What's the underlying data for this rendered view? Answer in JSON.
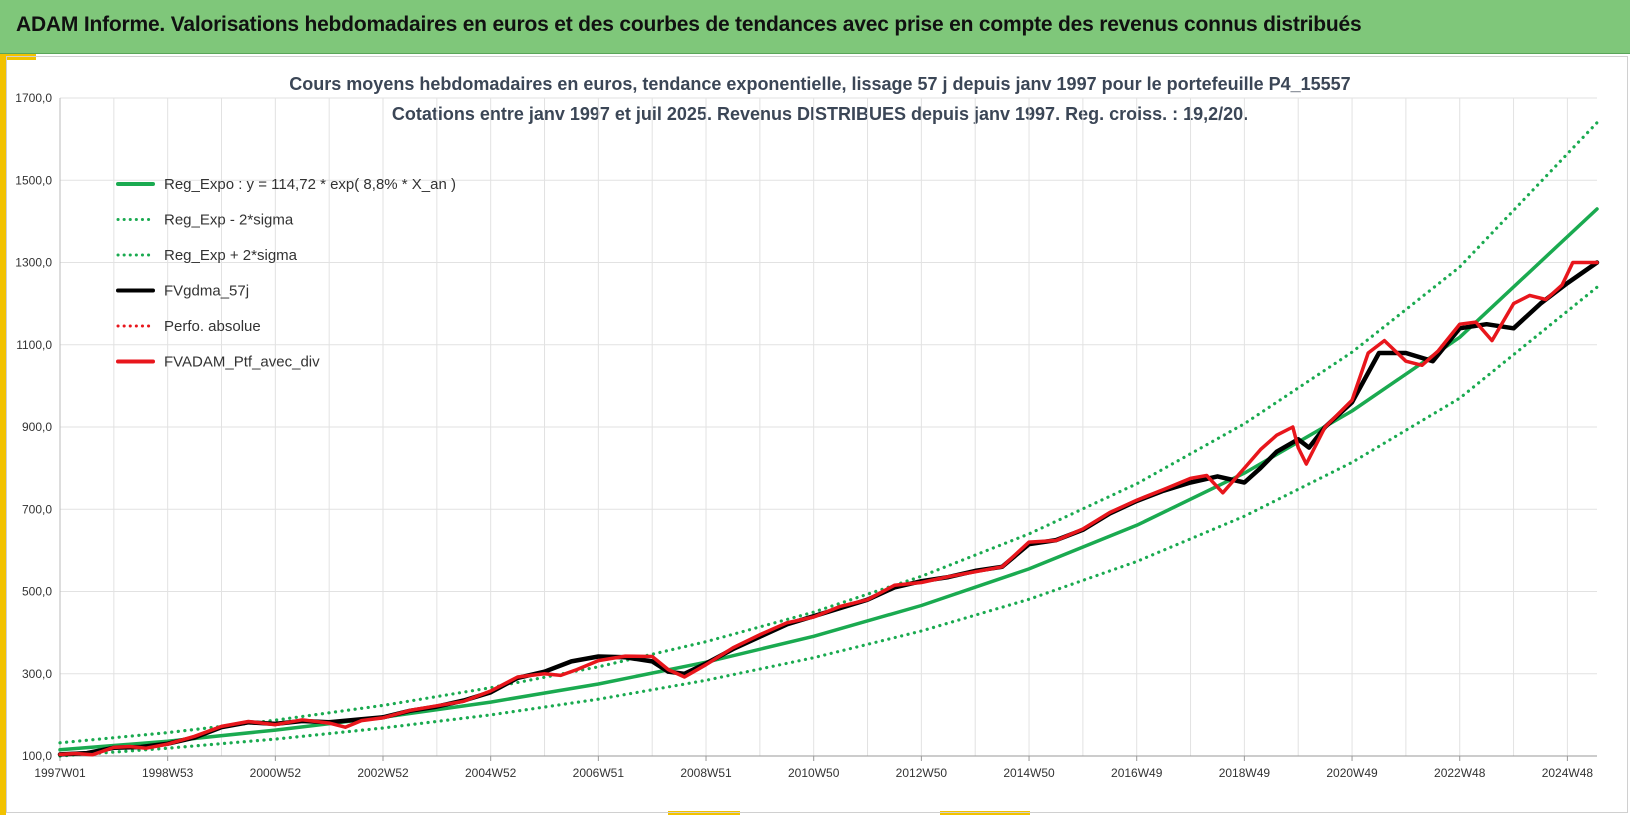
{
  "header": {
    "title": "ADAM Informe. Valorisations hebdomadaires en euros et des courbes de tendances avec prise en compte des revenus connus distribués"
  },
  "chart_data": {
    "type": "line",
    "title_line1": "Cours moyens hebdomadaires  en euros, tendance exponentielle, lissage 57 j depuis janv 1997 pour le portefeuille P4_15557",
    "title_line2": "Cotations entre janv 1997 et juil 2025. Revenus DISTRIBUES depuis janv 1997. Reg. croiss. : 19,2/20.",
    "ylim": [
      100,
      1700
    ],
    "y_ticks": [
      "100,0",
      "300,0",
      "500,0",
      "700,0",
      "900,0",
      "1100,0",
      "1300,0",
      "1500,0",
      "1700,0"
    ],
    "x_tick_labels": [
      {
        "x": 1997.0,
        "label": "1997W01"
      },
      {
        "x": 1999.0,
        "label": "1998W53"
      },
      {
        "x": 2001.0,
        "label": "2000W52"
      },
      {
        "x": 2003.0,
        "label": "2002W52"
      },
      {
        "x": 2005.0,
        "label": "2004W52"
      },
      {
        "x": 2007.0,
        "label": "2006W51"
      },
      {
        "x": 2009.0,
        "label": "2008W51"
      },
      {
        "x": 2011.0,
        "label": "2010W50"
      },
      {
        "x": 2013.0,
        "label": "2012W50"
      },
      {
        "x": 2015.0,
        "label": "2014W50"
      },
      {
        "x": 2017.0,
        "label": "2016W49"
      },
      {
        "x": 2019.0,
        "label": "2018W49"
      },
      {
        "x": 2021.0,
        "label": "2020W49"
      },
      {
        "x": 2023.0,
        "label": "2022W48"
      },
      {
        "x": 2025.0,
        "label": "2024W48"
      }
    ],
    "xlim": [
      1997.0,
      2025.55
    ],
    "grid": true,
    "legend_position": "top-left",
    "colors": {
      "green": "#1aaa50",
      "black": "#000000",
      "red": "#e8161c"
    },
    "series": [
      {
        "name": "Reg_Expo : y = 114,72 * exp( 8,8% *  X_an )",
        "style": "solid",
        "color": "#1aaa50",
        "x": [
          1997,
          1999,
          2001,
          2003,
          2005,
          2007,
          2009,
          2011,
          2013,
          2015,
          2017,
          2019,
          2021,
          2023,
          2025.55
        ],
        "y": [
          115,
          136,
          163,
          194,
          231,
          275,
          328,
          391,
          466,
          555,
          661,
          788,
          939,
          1118,
          1430
        ]
      },
      {
        "name": "Reg_Exp - 2*sigma",
        "style": "dotted",
        "color": "#1aaa50",
        "x": [
          1997,
          1999,
          2001,
          2003,
          2005,
          2007,
          2009,
          2011,
          2013,
          2015,
          2017,
          2019,
          2021,
          2023,
          2025.55
        ],
        "y": [
          100,
          119,
          141,
          168,
          200,
          238,
          284,
          339,
          404,
          481,
          573,
          683,
          814,
          970,
          1240
        ]
      },
      {
        "name": "Reg_Exp + 2*sigma",
        "style": "dotted",
        "color": "#1aaa50",
        "x": [
          1997,
          1999,
          2001,
          2003,
          2005,
          2007,
          2009,
          2011,
          2013,
          2015,
          2017,
          2019,
          2021,
          2023,
          2025.55
        ],
        "y": [
          132,
          157,
          187,
          223,
          266,
          317,
          378,
          450,
          537,
          640,
          762,
          908,
          1082,
          1289,
          1640
        ]
      },
      {
        "name": "FVgdma_57j",
        "style": "solid",
        "color": "#000000",
        "x": [
          1997,
          1997.5,
          1998,
          1998.5,
          1999,
          1999.5,
          2000,
          2000.5,
          2001,
          2001.5,
          2002,
          2002.5,
          2003,
          2003.5,
          2004,
          2004.5,
          2005,
          2005.5,
          2006,
          2006.5,
          2007,
          2007.5,
          2008,
          2008.3,
          2008.6,
          2009,
          2009.5,
          2010,
          2010.5,
          2011,
          2011.5,
          2012,
          2012.5,
          2013,
          2013.5,
          2014,
          2014.5,
          2015,
          2015.5,
          2016,
          2016.5,
          2017,
          2017.5,
          2018,
          2018.5,
          2019,
          2019.3,
          2019.6,
          2020,
          2020.2,
          2020.5,
          2021,
          2021.5,
          2022,
          2022.5,
          2023,
          2023.5,
          2024,
          2024.5,
          2025,
          2025.55
        ],
        "y": [
          104,
          107,
          120,
          122,
          130,
          145,
          170,
          182,
          178,
          185,
          182,
          188,
          194,
          210,
          220,
          235,
          255,
          290,
          305,
          330,
          342,
          340,
          330,
          305,
          300,
          325,
          360,
          390,
          420,
          440,
          460,
          480,
          510,
          525,
          535,
          550,
          560,
          615,
          625,
          650,
          690,
          720,
          745,
          765,
          780,
          765,
          800,
          840,
          870,
          850,
          900,
          960,
          1080,
          1080,
          1060,
          1140,
          1150,
          1140,
          1200,
          1250,
          1300
        ]
      },
      {
        "name": "Perfo. absolue",
        "style": "dotted",
        "color": "#e8161c",
        "x": [
          1997,
          1999,
          2001,
          2003,
          2005,
          2007,
          2009,
          2011,
          2013,
          2015,
          2017,
          2019,
          2021,
          2023,
          2025.55
        ],
        "y": [
          104,
          130,
          178,
          194,
          255,
          342,
          325,
          440,
          525,
          615,
          720,
          780,
          960,
          1140,
          1300
        ]
      },
      {
        "name": "FVADAM_Ptf_avec_div",
        "style": "solid",
        "color": "#e8161c",
        "x": [
          1997,
          1997.3,
          1997.6,
          1998,
          1998.3,
          1998.6,
          1999,
          1999.5,
          2000,
          2000.5,
          2001,
          2001.5,
          2002,
          2002.3,
          2002.6,
          2003,
          2003.5,
          2004,
          2004.5,
          2005,
          2005.5,
          2006,
          2006.3,
          2006.6,
          2007,
          2007.5,
          2008,
          2008.3,
          2008.6,
          2009,
          2009.5,
          2010,
          2010.5,
          2011,
          2011.5,
          2012,
          2012.5,
          2013,
          2013.5,
          2014,
          2014.5,
          2015,
          2015.5,
          2016,
          2016.5,
          2017,
          2017.5,
          2018,
          2018.3,
          2018.6,
          2019,
          2019.3,
          2019.6,
          2019.9,
          2020,
          2020.15,
          2020.5,
          2021,
          2021.3,
          2021.6,
          2022,
          2022.3,
          2022.6,
          2023,
          2023.3,
          2023.6,
          2024,
          2024.3,
          2024.6,
          2024.9,
          2025.1,
          2025.55
        ],
        "y": [
          104,
          106,
          103,
          121,
          123,
          119,
          129,
          148,
          172,
          184,
          176,
          188,
          180,
          170,
          186,
          193,
          211,
          222,
          233,
          258,
          292,
          300,
          296,
          310,
          332,
          343,
          342,
          310,
          292,
          322,
          363,
          395,
          424,
          438,
          464,
          480,
          515,
          522,
          536,
          548,
          560,
          620,
          624,
          652,
          692,
          722,
          748,
          775,
          782,
          740,
          800,
          845,
          880,
          900,
          850,
          810,
          900,
          965,
          1080,
          1110,
          1060,
          1050,
          1085,
          1150,
          1155,
          1110,
          1200,
          1220,
          1210,
          1245,
          1300,
          1300
        ]
      }
    ]
  }
}
